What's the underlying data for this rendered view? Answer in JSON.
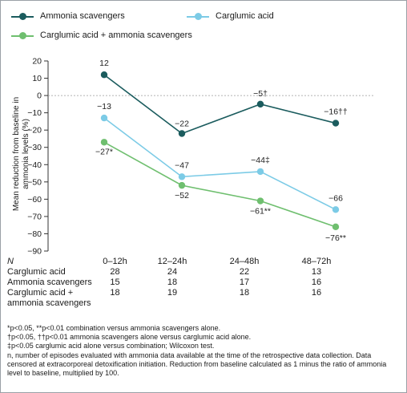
{
  "colors": {
    "ammonia": "#1b5c5e",
    "carglumic": "#7ccbe6",
    "combination": "#6fbf6f",
    "axis": "#333333"
  },
  "legend": {
    "ammonia": "Ammonia scavengers",
    "carglumic": "Carglumic acid",
    "combination": "Carglumic acid + ammonia scavengers"
  },
  "chart_data": {
    "type": "line",
    "ylabel": "Mean reduction from baseline in ammonia levels (%)",
    "ylim": [
      -90,
      20
    ],
    "yticks": [
      "20",
      "10",
      "0",
      "−10",
      "−20",
      "−30",
      "−40",
      "−50",
      "−60",
      "−70",
      "−80",
      "−90"
    ],
    "categories": [
      "0–12h",
      "12–24h",
      "24–48h",
      "48–72h"
    ],
    "series": [
      {
        "name": "Ammonia scavengers",
        "values": [
          12,
          -22,
          -5,
          -16
        ],
        "labels": [
          "12",
          "−22",
          "−5†",
          "−16††"
        ]
      },
      {
        "name": "Carglumic acid",
        "values": [
          -13,
          -47,
          -44,
          -66
        ],
        "labels": [
          "−13",
          "−47",
          "−44‡",
          "−66"
        ]
      },
      {
        "name": "Carglumic acid + ammonia scavengers",
        "values": [
          -27,
          -52,
          -61,
          -76
        ],
        "labels": [
          "−27*",
          "−52",
          "−61**",
          "−76**"
        ]
      }
    ]
  },
  "ntable": {
    "header": "N",
    "rows": [
      {
        "label": "Carglumic acid",
        "values": [
          "28",
          "24",
          "22",
          "13"
        ]
      },
      {
        "label": "Ammonia scavengers",
        "values": [
          "15",
          "18",
          "17",
          "16"
        ]
      },
      {
        "label": "Carglumic acid +",
        "label2": "ammonia scavengers",
        "values": [
          "18",
          "19",
          "18",
          "16"
        ]
      }
    ]
  },
  "footnotes": [
    "*p<0.05, **p<0.01 combination versus ammonia scavengers alone.",
    "†p<0.05, ††p<0.01 ammonia scavengers alone versus carglumic acid alone.",
    "‡p<0.05 carglumic acid alone versus combination; Wilcoxon test.",
    "n, number of episodes evaluated with ammonia data available at the time of the retrospective data collection. Data censored at extracorporeal detoxification initiation. Reduction from baseline calculated as 1 minus the ratio of ammonia level to baseline, multiplied by 100."
  ]
}
